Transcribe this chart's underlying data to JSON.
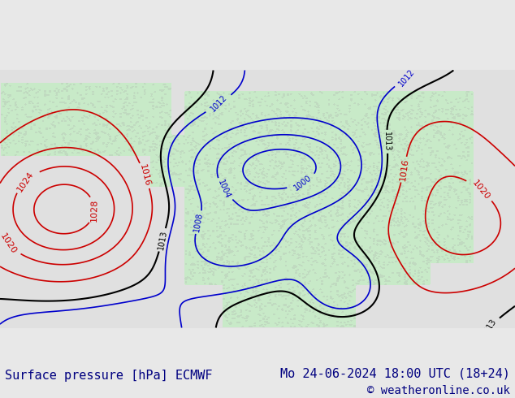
{
  "title_left": "Surface pressure [hPa] ECMWF",
  "title_right": "Mo 24-06-2024 18:00 UTC (18+24)",
  "copyright": "© weatheronline.co.uk",
  "bg_color": "#e8e8e8",
  "land_color": "#c8eac8",
  "ocean_color": "#e0e0e0",
  "contour_color_low": "#0000cc",
  "contour_color_high": "#cc0000",
  "contour_color_1013": "#000000",
  "title_color": "#000080",
  "title_fontsize": 11,
  "copyright_fontsize": 10,
  "figsize": [
    6.34,
    4.9
  ],
  "dpi": 100
}
